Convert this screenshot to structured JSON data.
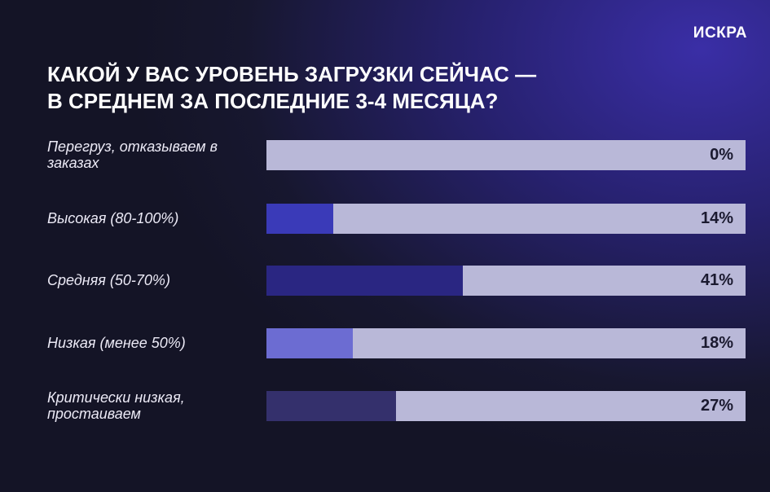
{
  "brand": "ИСКРА",
  "chart_data": {
    "type": "bar",
    "title": [
      "КАКОЙ У ВАС УРОВЕНЬ ЗАГРУЗКИ СЕЙЧАС —",
      "В СРЕДНЕМ ЗА ПОСЛЕДНИЕ 3-4 МЕСЯЦА?"
    ],
    "categories": [
      "Перегруз, отказываем в заказах",
      "Высокая (80-100%)",
      "Средняя (50-70%)",
      "Низкая (менее 50%)",
      "Критически низкая, простаиваем"
    ],
    "values": [
      0,
      14,
      41,
      18,
      27
    ],
    "value_labels": [
      "0%",
      "14%",
      "41%",
      "18%",
      "27%"
    ],
    "colors": [
      "#3a3ab8",
      "#3a3ab8",
      "#2a2682",
      "#6c6cd2",
      "#34306c"
    ],
    "track_color": "#b9b8d8",
    "xlim": [
      0,
      100
    ]
  }
}
